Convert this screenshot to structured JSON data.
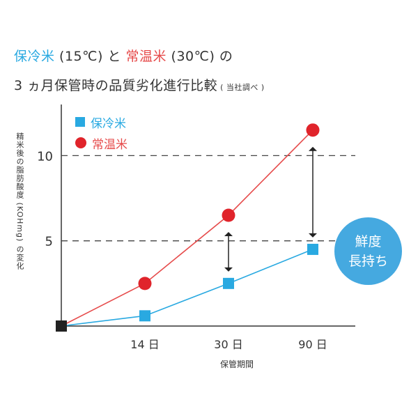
{
  "header": {
    "title_line1": [
      {
        "text": "保冷米",
        "tone": "cold"
      },
      {
        "text": " (15℃) と ",
        "tone": "plain"
      },
      {
        "text": "常温米",
        "tone": "warm"
      },
      {
        "text": " (30℃) の",
        "tone": "plain"
      }
    ],
    "title_line2": "3 ヵ月保管時の品質劣化進行比較",
    "title_note": "( 当社調べ )"
  },
  "legend": {
    "cold_label": "保冷米",
    "warm_label": "常温米"
  },
  "badge": {
    "line1": "鮮度",
    "line2": "長持ち"
  },
  "colors": {
    "cold": "#29a9e1",
    "warm": "#e0242b",
    "badge": "#45a9e0",
    "origin": "#222222"
  },
  "chart_data": {
    "type": "line",
    "categories": [
      "",
      "14 日",
      "30 日",
      "90 日"
    ],
    "ylabel": "精米後の脂肪酸度 (KOHmg) の変化",
    "xlabel": "保管期間",
    "yticks": [
      5,
      10
    ],
    "ylim": [
      0,
      13
    ],
    "reference_lines": [
      5,
      10
    ],
    "series": [
      {
        "name": "保冷米",
        "marker": "square",
        "values": [
          0,
          0.6,
          2.5,
          4.5
        ]
      },
      {
        "name": "常温米",
        "marker": "circle",
        "values": [
          0,
          2.5,
          6.5,
          11.5
        ]
      }
    ]
  }
}
